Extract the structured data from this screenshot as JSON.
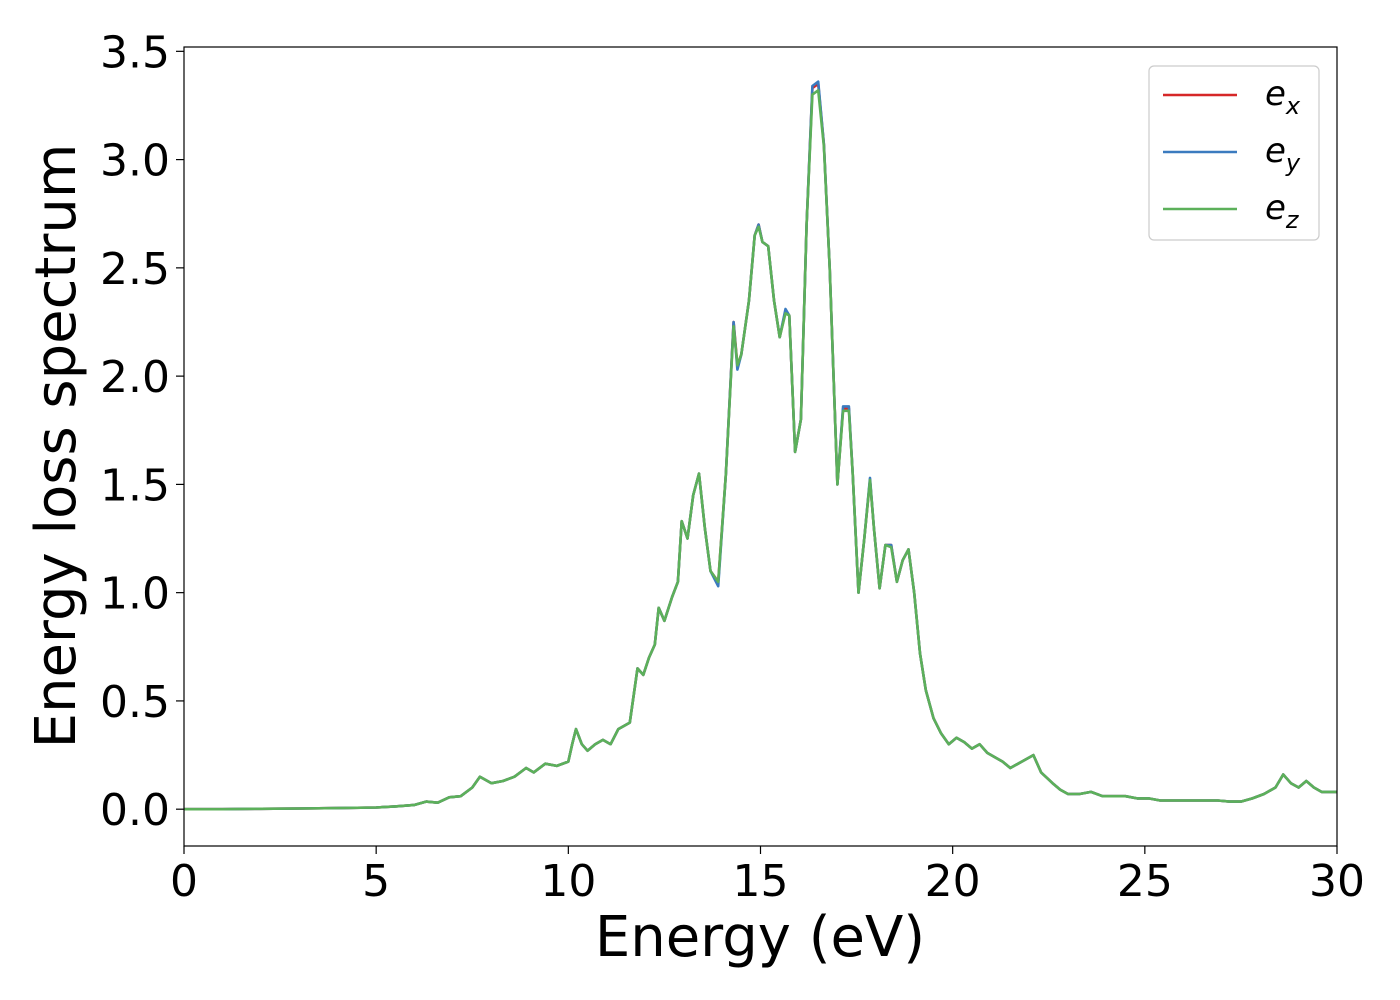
{
  "chart_data": {
    "type": "line",
    "xlabel": "Energy (eV)",
    "ylabel": "Energy loss spectrum",
    "xlim": [
      0,
      30
    ],
    "ylim": [
      -0.17,
      3.52
    ],
    "xticks": [
      0,
      5,
      10,
      15,
      20,
      25,
      30
    ],
    "xtick_labels": [
      "0",
      "5",
      "10",
      "15",
      "20",
      "25",
      "30"
    ],
    "yticks": [
      0.0,
      0.5,
      1.0,
      1.5,
      2.0,
      2.5,
      3.0,
      3.5
    ],
    "ytick_labels": [
      "0.0",
      "0.5",
      "1.0",
      "1.5",
      "2.0",
      "2.5",
      "3.0",
      "3.5"
    ],
    "grid": false,
    "legend_position": "top-right",
    "series": [
      {
        "name": "e_x",
        "legend_base": "e",
        "legend_sub": "x",
        "color": "#d62728",
        "x": [
          0,
          1,
          2,
          3,
          4,
          5,
          5.5,
          6,
          6.3,
          6.6,
          6.9,
          7.2,
          7.5,
          7.7,
          8.0,
          8.3,
          8.6,
          8.9,
          9.1,
          9.4,
          9.7,
          10.0,
          10.1,
          10.2,
          10.35,
          10.5,
          10.7,
          10.9,
          11.1,
          11.3,
          11.6,
          11.8,
          11.95,
          12.1,
          12.25,
          12.35,
          12.5,
          12.7,
          12.85,
          12.95,
          13.1,
          13.25,
          13.4,
          13.55,
          13.7,
          13.9,
          14.1,
          14.3,
          14.4,
          14.5,
          14.7,
          14.85,
          14.95,
          15.05,
          15.2,
          15.35,
          15.5,
          15.65,
          15.75,
          15.9,
          16.05,
          16.2,
          16.35,
          16.5,
          16.65,
          16.8,
          17.0,
          17.15,
          17.3,
          17.4,
          17.55,
          17.7,
          17.85,
          17.95,
          18.1,
          18.25,
          18.4,
          18.55,
          18.7,
          18.85,
          19.0,
          19.15,
          19.3,
          19.5,
          19.7,
          19.9,
          20.1,
          20.3,
          20.5,
          20.7,
          20.9,
          21.1,
          21.3,
          21.5,
          21.8,
          22.1,
          22.3,
          22.6,
          22.8,
          23.0,
          23.3,
          23.6,
          23.9,
          24.2,
          24.5,
          24.8,
          25.1,
          25.4,
          25.7,
          26.0,
          26.3,
          26.6,
          26.9,
          27.2,
          27.5,
          27.8,
          28.1,
          28.4,
          28.6,
          28.8,
          29.0,
          29.2,
          29.4,
          29.6,
          29.8,
          30.0
        ],
        "values": [
          0,
          0,
          0.002,
          0.003,
          0.005,
          0.008,
          0.013,
          0.02,
          0.035,
          0.03,
          0.055,
          0.06,
          0.1,
          0.15,
          0.12,
          0.13,
          0.15,
          0.19,
          0.17,
          0.21,
          0.2,
          0.22,
          0.3,
          0.37,
          0.3,
          0.27,
          0.3,
          0.32,
          0.3,
          0.37,
          0.4,
          0.65,
          0.62,
          0.7,
          0.76,
          0.93,
          0.87,
          0.98,
          1.05,
          1.33,
          1.25,
          1.45,
          1.55,
          1.3,
          1.1,
          1.05,
          1.55,
          2.25,
          2.05,
          2.1,
          2.35,
          2.65,
          2.7,
          2.62,
          2.6,
          2.35,
          2.18,
          2.3,
          2.28,
          1.65,
          1.8,
          2.7,
          3.33,
          3.35,
          3.07,
          2.5,
          1.5,
          1.85,
          1.85,
          1.55,
          1.0,
          1.25,
          1.52,
          1.3,
          1.02,
          1.22,
          1.22,
          1.05,
          1.15,
          1.2,
          1.0,
          0.72,
          0.55,
          0.42,
          0.35,
          0.3,
          0.33,
          0.31,
          0.28,
          0.3,
          0.26,
          0.24,
          0.22,
          0.19,
          0.22,
          0.25,
          0.17,
          0.12,
          0.09,
          0.07,
          0.07,
          0.08,
          0.06,
          0.06,
          0.06,
          0.05,
          0.05,
          0.04,
          0.04,
          0.04,
          0.04,
          0.04,
          0.04,
          0.035,
          0.035,
          0.05,
          0.07,
          0.1,
          0.16,
          0.12,
          0.1,
          0.13,
          0.1,
          0.08,
          0.08,
          0.08
        ]
      },
      {
        "name": "e_y",
        "legend_base": "e",
        "legend_sub": "y",
        "color": "#3b7bbf",
        "x": [
          0,
          1,
          2,
          3,
          4,
          5,
          5.5,
          6,
          6.3,
          6.6,
          6.9,
          7.2,
          7.5,
          7.7,
          8.0,
          8.3,
          8.6,
          8.9,
          9.1,
          9.4,
          9.7,
          10.0,
          10.1,
          10.2,
          10.35,
          10.5,
          10.7,
          10.9,
          11.1,
          11.3,
          11.6,
          11.8,
          11.95,
          12.1,
          12.25,
          12.35,
          12.5,
          12.7,
          12.85,
          12.95,
          13.1,
          13.25,
          13.4,
          13.55,
          13.7,
          13.9,
          14.1,
          14.3,
          14.4,
          14.5,
          14.7,
          14.85,
          14.95,
          15.05,
          15.2,
          15.35,
          15.5,
          15.65,
          15.75,
          15.9,
          16.05,
          16.2,
          16.35,
          16.5,
          16.65,
          16.8,
          17.0,
          17.15,
          17.3,
          17.4,
          17.55,
          17.7,
          17.85,
          17.95,
          18.1,
          18.25,
          18.4,
          18.55,
          18.7,
          18.85,
          19.0,
          19.15,
          19.3,
          19.5,
          19.7,
          19.9,
          20.1,
          20.3,
          20.5,
          20.7,
          20.9,
          21.1,
          21.3,
          21.5,
          21.8,
          22.1,
          22.3,
          22.6,
          22.8,
          23.0,
          23.3,
          23.6,
          23.9,
          24.2,
          24.5,
          24.8,
          25.1,
          25.4,
          25.7,
          26.0,
          26.3,
          26.6,
          26.9,
          27.2,
          27.5,
          27.8,
          28.1,
          28.4,
          28.6,
          28.8,
          29.0,
          29.2,
          29.4,
          29.6,
          29.8,
          30.0
        ],
        "values": [
          0,
          0,
          0.002,
          0.003,
          0.005,
          0.008,
          0.013,
          0.02,
          0.035,
          0.03,
          0.055,
          0.06,
          0.1,
          0.15,
          0.12,
          0.13,
          0.15,
          0.19,
          0.17,
          0.21,
          0.2,
          0.22,
          0.3,
          0.37,
          0.3,
          0.27,
          0.3,
          0.32,
          0.3,
          0.37,
          0.4,
          0.65,
          0.62,
          0.7,
          0.76,
          0.93,
          0.87,
          0.98,
          1.05,
          1.33,
          1.25,
          1.45,
          1.55,
          1.3,
          1.1,
          1.03,
          1.55,
          2.25,
          2.03,
          2.1,
          2.35,
          2.65,
          2.7,
          2.62,
          2.6,
          2.35,
          2.18,
          2.31,
          2.28,
          1.65,
          1.8,
          2.7,
          3.34,
          3.36,
          3.07,
          2.5,
          1.5,
          1.86,
          1.86,
          1.55,
          1.0,
          1.25,
          1.53,
          1.3,
          1.02,
          1.22,
          1.22,
          1.05,
          1.15,
          1.2,
          1.0,
          0.72,
          0.55,
          0.42,
          0.35,
          0.3,
          0.33,
          0.31,
          0.28,
          0.3,
          0.26,
          0.24,
          0.22,
          0.19,
          0.22,
          0.25,
          0.17,
          0.12,
          0.09,
          0.07,
          0.07,
          0.08,
          0.06,
          0.06,
          0.06,
          0.05,
          0.05,
          0.04,
          0.04,
          0.04,
          0.04,
          0.04,
          0.04,
          0.035,
          0.035,
          0.05,
          0.07,
          0.1,
          0.16,
          0.12,
          0.1,
          0.13,
          0.1,
          0.08,
          0.08,
          0.08
        ]
      },
      {
        "name": "e_z",
        "legend_base": "e",
        "legend_sub": "z",
        "color": "#5cb05a",
        "x": [
          0,
          1,
          2,
          3,
          4,
          5,
          5.5,
          6,
          6.3,
          6.6,
          6.9,
          7.2,
          7.5,
          7.7,
          8.0,
          8.3,
          8.6,
          8.9,
          9.1,
          9.4,
          9.7,
          10.0,
          10.1,
          10.2,
          10.35,
          10.5,
          10.7,
          10.9,
          11.1,
          11.3,
          11.6,
          11.8,
          11.95,
          12.1,
          12.25,
          12.35,
          12.5,
          12.7,
          12.85,
          12.95,
          13.1,
          13.25,
          13.4,
          13.55,
          13.7,
          13.9,
          14.1,
          14.3,
          14.4,
          14.5,
          14.7,
          14.85,
          14.95,
          15.05,
          15.2,
          15.35,
          15.5,
          15.65,
          15.75,
          15.9,
          16.05,
          16.2,
          16.35,
          16.5,
          16.65,
          16.8,
          17.0,
          17.15,
          17.3,
          17.4,
          17.55,
          17.7,
          17.85,
          17.95,
          18.1,
          18.25,
          18.4,
          18.55,
          18.7,
          18.85,
          19.0,
          19.15,
          19.3,
          19.5,
          19.7,
          19.9,
          20.1,
          20.3,
          20.5,
          20.7,
          20.9,
          21.1,
          21.3,
          21.5,
          21.8,
          22.1,
          22.3,
          22.6,
          22.8,
          23.0,
          23.3,
          23.6,
          23.9,
          24.2,
          24.5,
          24.8,
          25.1,
          25.4,
          25.7,
          26.0,
          26.3,
          26.6,
          26.9,
          27.2,
          27.5,
          27.8,
          28.1,
          28.4,
          28.6,
          28.8,
          29.0,
          29.2,
          29.4,
          29.6,
          29.8,
          30.0
        ],
        "values": [
          0,
          0,
          0.002,
          0.003,
          0.005,
          0.008,
          0.013,
          0.02,
          0.035,
          0.03,
          0.055,
          0.06,
          0.1,
          0.15,
          0.12,
          0.13,
          0.15,
          0.19,
          0.17,
          0.21,
          0.2,
          0.22,
          0.3,
          0.37,
          0.3,
          0.27,
          0.3,
          0.32,
          0.3,
          0.37,
          0.4,
          0.65,
          0.62,
          0.7,
          0.76,
          0.93,
          0.87,
          0.98,
          1.05,
          1.33,
          1.25,
          1.45,
          1.55,
          1.3,
          1.1,
          1.05,
          1.55,
          2.23,
          2.05,
          2.1,
          2.35,
          2.65,
          2.69,
          2.62,
          2.6,
          2.35,
          2.18,
          2.29,
          2.28,
          1.65,
          1.8,
          2.7,
          3.3,
          3.32,
          3.06,
          2.5,
          1.5,
          1.84,
          1.84,
          1.55,
          1.0,
          1.25,
          1.52,
          1.3,
          1.02,
          1.22,
          1.21,
          1.05,
          1.15,
          1.2,
          1.0,
          0.72,
          0.55,
          0.42,
          0.35,
          0.3,
          0.33,
          0.31,
          0.28,
          0.3,
          0.26,
          0.24,
          0.22,
          0.19,
          0.22,
          0.25,
          0.17,
          0.12,
          0.09,
          0.07,
          0.07,
          0.08,
          0.06,
          0.06,
          0.06,
          0.05,
          0.05,
          0.04,
          0.04,
          0.04,
          0.04,
          0.04,
          0.04,
          0.035,
          0.035,
          0.05,
          0.07,
          0.1,
          0.16,
          0.12,
          0.1,
          0.13,
          0.1,
          0.08,
          0.08,
          0.08
        ]
      }
    ]
  }
}
